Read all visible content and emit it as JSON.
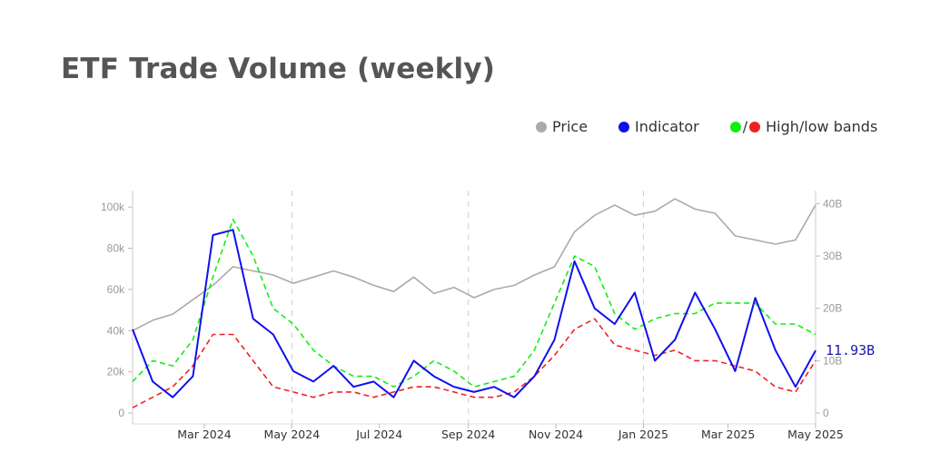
{
  "title": "ETF Trade Volume (weekly)",
  "legend": [
    {
      "label": "Price",
      "color": "#aaaaaa"
    },
    {
      "label": "Indicator",
      "color": "#1010ee"
    },
    {
      "label": "High/low bands",
      "colors": [
        "#11ee11",
        "#ee2222"
      ]
    }
  ],
  "chart_data": {
    "type": "line",
    "grid": false,
    "x_ticks": [
      "Mar 2024",
      "May 2024",
      "Jul 2024",
      "Sep 2024",
      "Nov 2024",
      "Jan 2025",
      "Mar 2025",
      "May 2025"
    ],
    "x_tick_dates": [
      "2024-03-01",
      "2024-05-01",
      "2024-07-01",
      "2024-09-01",
      "2024-11-01",
      "2025-01-01",
      "2025-03-01",
      "2025-05-01"
    ],
    "x_range": [
      "2024-01-11",
      "2025-05-01"
    ],
    "y_left": {
      "ticks": [
        "0",
        "20k",
        "40k",
        "60k",
        "80k",
        "100k"
      ],
      "values": [
        0,
        20000,
        40000,
        60000,
        80000,
        100000
      ],
      "range": [
        0,
        108000
      ]
    },
    "y_right": {
      "ticks": [
        "0",
        "10B",
        "20B",
        "30B",
        "40B"
      ],
      "values": [
        0,
        10,
        20,
        30,
        40
      ],
      "range": [
        0,
        42.5
      ]
    },
    "last_value_label": "11.93B",
    "series": [
      {
        "name": "Price",
        "axis": "left",
        "color": "#aaaaaa",
        "points": [
          [
            "2024-01-11",
            40000
          ],
          [
            "2024-01-25",
            45000
          ],
          [
            "2024-02-08",
            48000
          ],
          [
            "2024-02-22",
            55000
          ],
          [
            "2024-03-07",
            62000
          ],
          [
            "2024-03-21",
            71000
          ],
          [
            "2024-04-04",
            69000
          ],
          [
            "2024-04-18",
            67000
          ],
          [
            "2024-05-02",
            63000
          ],
          [
            "2024-05-16",
            66000
          ],
          [
            "2024-05-30",
            69000
          ],
          [
            "2024-06-13",
            66000
          ],
          [
            "2024-06-27",
            62000
          ],
          [
            "2024-07-11",
            59000
          ],
          [
            "2024-07-25",
            66000
          ],
          [
            "2024-08-08",
            58000
          ],
          [
            "2024-08-22",
            61000
          ],
          [
            "2024-09-05",
            56000
          ],
          [
            "2024-09-19",
            60000
          ],
          [
            "2024-10-03",
            62000
          ],
          [
            "2024-10-17",
            67000
          ],
          [
            "2024-10-31",
            71000
          ],
          [
            "2024-11-14",
            88000
          ],
          [
            "2024-11-28",
            96000
          ],
          [
            "2024-12-12",
            101000
          ],
          [
            "2024-12-26",
            96000
          ],
          [
            "2025-01-09",
            98000
          ],
          [
            "2025-01-23",
            104000
          ],
          [
            "2025-02-06",
            99000
          ],
          [
            "2025-02-20",
            97000
          ],
          [
            "2025-03-06",
            86000
          ],
          [
            "2025-03-20",
            84000
          ],
          [
            "2025-04-03",
            82000
          ],
          [
            "2025-04-17",
            84000
          ],
          [
            "2025-05-01",
            101000
          ]
        ]
      },
      {
        "name": "Indicator",
        "axis": "right",
        "color": "#1010ee",
        "points": [
          [
            "2024-01-11",
            16
          ],
          [
            "2024-01-25",
            6
          ],
          [
            "2024-02-08",
            3
          ],
          [
            "2024-02-22",
            7
          ],
          [
            "2024-03-07",
            34
          ],
          [
            "2024-03-21",
            35
          ],
          [
            "2024-04-04",
            18
          ],
          [
            "2024-04-18",
            15
          ],
          [
            "2024-05-02",
            8
          ],
          [
            "2024-05-16",
            6
          ],
          [
            "2024-05-30",
            9
          ],
          [
            "2024-06-13",
            5
          ],
          [
            "2024-06-27",
            6
          ],
          [
            "2024-07-11",
            3
          ],
          [
            "2024-07-25",
            10
          ],
          [
            "2024-08-08",
            7
          ],
          [
            "2024-08-22",
            5
          ],
          [
            "2024-09-05",
            4
          ],
          [
            "2024-09-19",
            5
          ],
          [
            "2024-10-03",
            3
          ],
          [
            "2024-10-17",
            7
          ],
          [
            "2024-10-31",
            14
          ],
          [
            "2024-11-14",
            29
          ],
          [
            "2024-11-28",
            20
          ],
          [
            "2024-12-12",
            17
          ],
          [
            "2024-12-26",
            23
          ],
          [
            "2025-01-09",
            10
          ],
          [
            "2025-01-23",
            14
          ],
          [
            "2025-02-06",
            23
          ],
          [
            "2025-02-20",
            16
          ],
          [
            "2025-03-06",
            8
          ],
          [
            "2025-03-20",
            22
          ],
          [
            "2025-04-03",
            12
          ],
          [
            "2025-04-17",
            5
          ],
          [
            "2025-05-01",
            11.93
          ]
        ]
      },
      {
        "name": "High band",
        "axis": "right",
        "color": "#11ee11",
        "points": [
          [
            "2024-01-11",
            6
          ],
          [
            "2024-01-25",
            10
          ],
          [
            "2024-02-08",
            9
          ],
          [
            "2024-02-22",
            14
          ],
          [
            "2024-03-07",
            26
          ],
          [
            "2024-03-21",
            37
          ],
          [
            "2024-04-04",
            30
          ],
          [
            "2024-04-18",
            20
          ],
          [
            "2024-05-02",
            17
          ],
          [
            "2024-05-16",
            12
          ],
          [
            "2024-05-30",
            9
          ],
          [
            "2024-06-13",
            7
          ],
          [
            "2024-06-27",
            7
          ],
          [
            "2024-07-11",
            5
          ],
          [
            "2024-07-25",
            7
          ],
          [
            "2024-08-08",
            10
          ],
          [
            "2024-08-22",
            8
          ],
          [
            "2024-09-05",
            5
          ],
          [
            "2024-09-19",
            6
          ],
          [
            "2024-10-03",
            7
          ],
          [
            "2024-10-17",
            12
          ],
          [
            "2024-10-31",
            21
          ],
          [
            "2024-11-14",
            30
          ],
          [
            "2024-11-28",
            28
          ],
          [
            "2024-12-12",
            19
          ],
          [
            "2024-12-26",
            16
          ],
          [
            "2025-01-09",
            18
          ],
          [
            "2025-01-23",
            19
          ],
          [
            "2025-02-06",
            19
          ],
          [
            "2025-02-20",
            21
          ],
          [
            "2025-03-06",
            21
          ],
          [
            "2025-03-20",
            21
          ],
          [
            "2025-04-03",
            17
          ],
          [
            "2025-04-17",
            17
          ],
          [
            "2025-05-01",
            15
          ]
        ]
      },
      {
        "name": "Low band",
        "axis": "right",
        "color": "#ee2222",
        "points": [
          [
            "2024-01-11",
            1
          ],
          [
            "2024-01-25",
            3
          ],
          [
            "2024-02-08",
            5
          ],
          [
            "2024-02-22",
            9
          ],
          [
            "2024-03-07",
            15
          ],
          [
            "2024-03-21",
            15
          ],
          [
            "2024-04-04",
            10
          ],
          [
            "2024-04-18",
            5
          ],
          [
            "2024-05-02",
            4
          ],
          [
            "2024-05-16",
            3
          ],
          [
            "2024-05-30",
            4
          ],
          [
            "2024-06-13",
            4
          ],
          [
            "2024-06-27",
            3
          ],
          [
            "2024-07-11",
            4
          ],
          [
            "2024-07-25",
            5
          ],
          [
            "2024-08-08",
            5
          ],
          [
            "2024-08-22",
            4
          ],
          [
            "2024-09-05",
            3
          ],
          [
            "2024-09-19",
            3
          ],
          [
            "2024-10-03",
            4
          ],
          [
            "2024-10-17",
            7
          ],
          [
            "2024-10-31",
            11
          ],
          [
            "2024-11-14",
            16
          ],
          [
            "2024-11-28",
            18
          ],
          [
            "2024-12-12",
            13
          ],
          [
            "2024-12-26",
            12
          ],
          [
            "2025-01-09",
            11
          ],
          [
            "2025-01-23",
            12
          ],
          [
            "2025-02-06",
            10
          ],
          [
            "2025-02-20",
            10
          ],
          [
            "2025-03-06",
            9
          ],
          [
            "2025-03-20",
            8
          ],
          [
            "2025-04-03",
            5
          ],
          [
            "2025-04-17",
            4
          ],
          [
            "2025-05-01",
            10
          ]
        ]
      }
    ]
  }
}
